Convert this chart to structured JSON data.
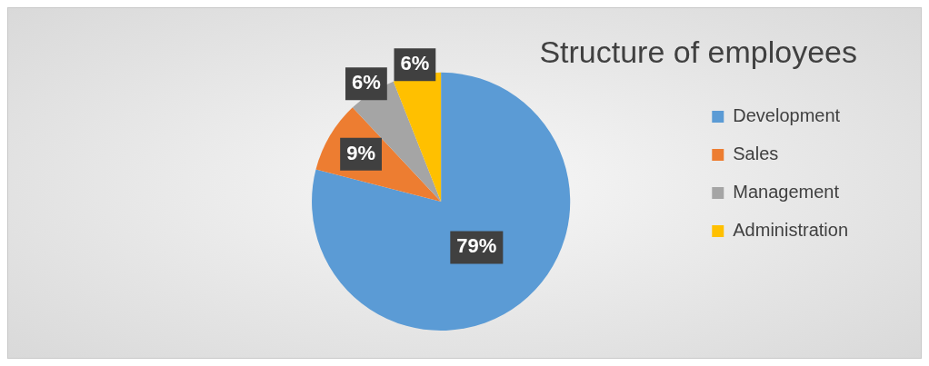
{
  "chart_data": {
    "type": "pie",
    "title": "Structure of employees",
    "categories": [
      "Development",
      "Sales",
      "Management",
      "Administration"
    ],
    "values": [
      79,
      9,
      6,
      6
    ],
    "colors": [
      "#5b9bd5",
      "#ed7d31",
      "#a5a5a5",
      "#ffc000"
    ],
    "value_labels": [
      "79%",
      "9%",
      "6%",
      "6%"
    ],
    "legend": "right"
  }
}
